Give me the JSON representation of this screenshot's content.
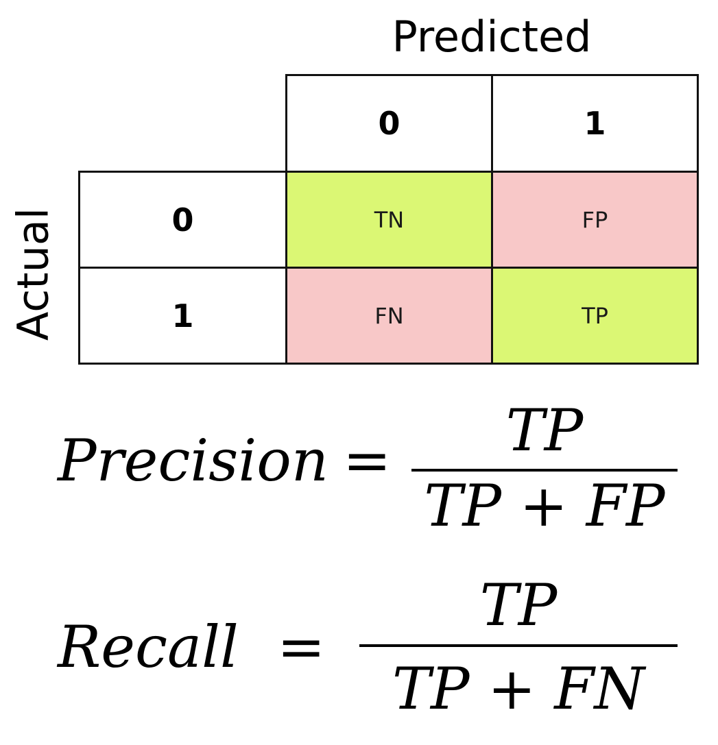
{
  "axes": {
    "predicted": "Predicted",
    "actual": "Actual"
  },
  "matrix": {
    "column_headers": [
      "0",
      "1"
    ],
    "row_headers": [
      "0",
      "1"
    ],
    "cells": [
      [
        "TN",
        "FP"
      ],
      [
        "FN",
        "TP"
      ]
    ],
    "colors": {
      "correct": "#dbf774",
      "incorrect": "#f8c8c8"
    }
  },
  "formulas": {
    "precision": {
      "lhs": "Precision",
      "equals": "=",
      "numerator": "TP",
      "denominator": "TP + FP"
    },
    "recall": {
      "lhs": "Recall",
      "equals": "=",
      "numerator": "TP",
      "denominator": "TP + FN"
    }
  }
}
